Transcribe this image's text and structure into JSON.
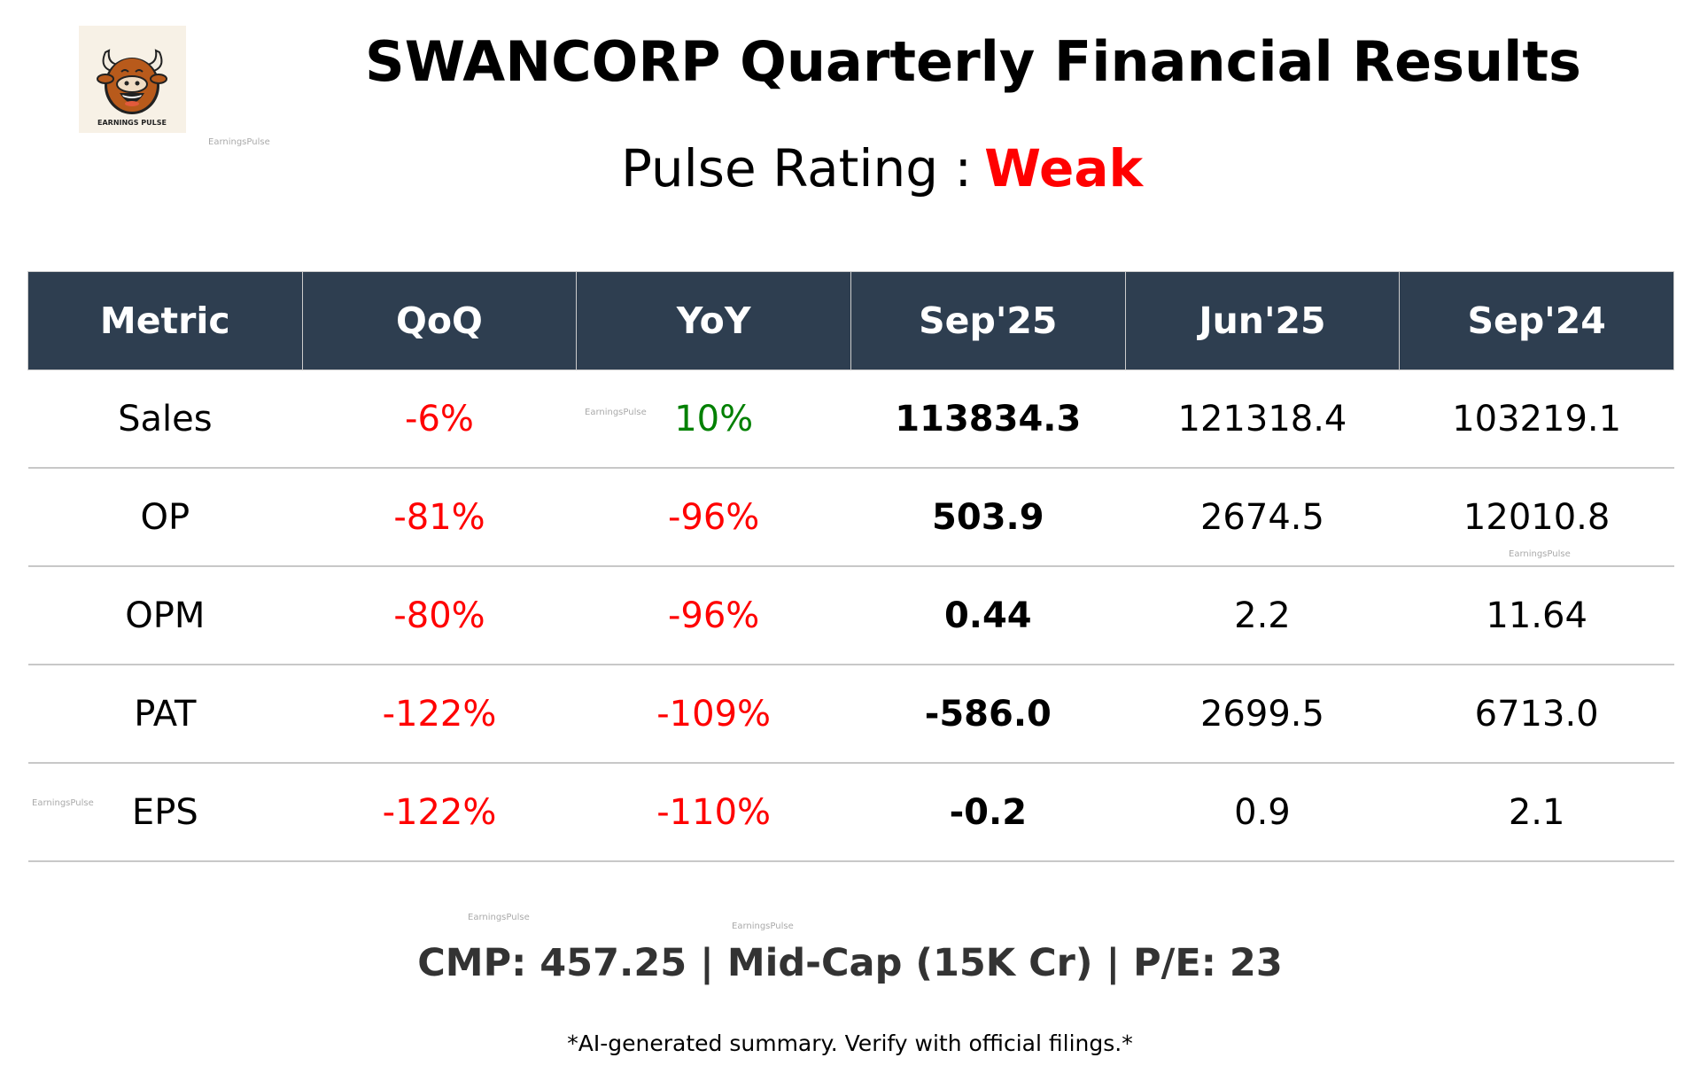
{
  "logo": {
    "text": "EARNINGS PULSE",
    "icon": "bull-mascot"
  },
  "watermark": "EarningsPulse",
  "title": "SWANCORP Quarterly Financial Results",
  "rating": {
    "label": "Pulse Rating :",
    "value": "Weak",
    "color": "#ff0000"
  },
  "colors": {
    "header_bg": "#2e3e50",
    "negative": "#ff0000",
    "positive": "#008000"
  },
  "table": {
    "headers": [
      "Metric",
      "QoQ",
      "YoY",
      "Sep'25",
      "Jun'25",
      "Sep'24"
    ],
    "rows": [
      {
        "metric": "Sales",
        "qoq": "-6%",
        "yoy": "10%",
        "sep25": "113834.3",
        "jun25": "121318.4",
        "sep24": "103219.1",
        "qoq_color": "#ff0000",
        "yoy_color": "#008000"
      },
      {
        "metric": "OP",
        "qoq": "-81%",
        "yoy": "-96%",
        "sep25": "503.9",
        "jun25": "2674.5",
        "sep24": "12010.8",
        "qoq_color": "#ff0000",
        "yoy_color": "#ff0000"
      },
      {
        "metric": "OPM",
        "qoq": "-80%",
        "yoy": "-96%",
        "sep25": "0.44",
        "jun25": "2.2",
        "sep24": "11.64",
        "qoq_color": "#ff0000",
        "yoy_color": "#ff0000"
      },
      {
        "metric": "PAT",
        "qoq": "-122%",
        "yoy": "-109%",
        "sep25": "-586.0",
        "jun25": "2699.5",
        "sep24": "6713.0",
        "qoq_color": "#ff0000",
        "yoy_color": "#ff0000"
      },
      {
        "metric": "EPS",
        "qoq": "-122%",
        "yoy": "-110%",
        "sep25": "-0.2",
        "jun25": "0.9",
        "sep24": "2.1",
        "qoq_color": "#ff0000",
        "yoy_color": "#ff0000"
      }
    ]
  },
  "summary": "CMP: 457.25 | Mid-Cap (15K Cr) | P/E: 23",
  "disclaimer": "*AI-generated summary. Verify with official filings.*"
}
